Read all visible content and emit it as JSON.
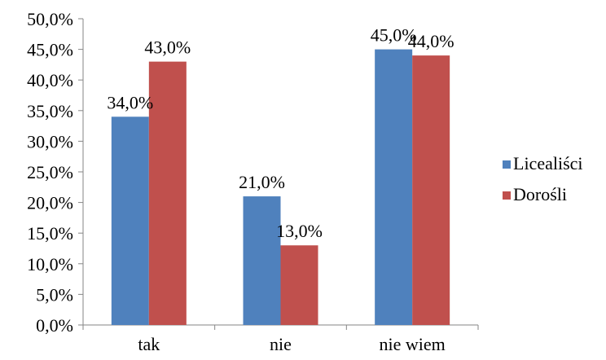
{
  "chart_data": {
    "type": "bar",
    "categories": [
      "tak",
      "nie",
      "nie wiem"
    ],
    "series": [
      {
        "name": "Licealiści",
        "values": [
          34.0,
          21.0,
          45.0
        ],
        "color": "#4f81bd"
      },
      {
        "name": "Dorośli",
        "values": [
          43.0,
          13.0,
          44.0
        ],
        "color": "#c0504d"
      }
    ],
    "data_labels": [
      [
        "34,0%",
        "21,0%",
        "45,0%"
      ],
      [
        "43,0%",
        "13,0%",
        "44,0%"
      ]
    ],
    "y_ticks": [
      0,
      5,
      10,
      15,
      20,
      25,
      30,
      35,
      40,
      45,
      50
    ],
    "y_tick_labels": [
      "0,0%",
      "5,0%",
      "10,0%",
      "15,0%",
      "20,0%",
      "25,0%",
      "30,0%",
      "35,0%",
      "40,0%",
      "45,0%",
      "50,0%"
    ],
    "ylim": [
      0,
      50
    ],
    "title": "",
    "xlabel": "",
    "ylabel": "",
    "grid": false,
    "legend_position": "right"
  }
}
